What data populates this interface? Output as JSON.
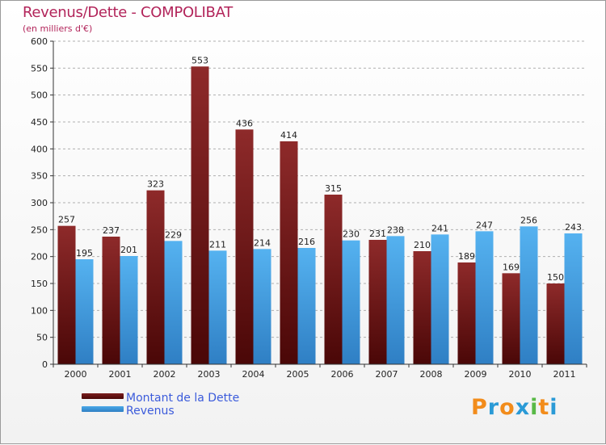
{
  "title": "Revenus/Dette - COMPOLIBAT",
  "subtitle": "(en milliers d'€)",
  "brand": {
    "text": "Proxiti",
    "letter_colors": [
      "#f28c1b",
      "#2a9ad6",
      "#f28c1b",
      "#2a9ad6",
      "#58b947",
      "#f28c1b",
      "#2a9ad6"
    ]
  },
  "colors": {
    "dette": "#7a1e1e",
    "dette_dark": "#4a0707",
    "revenus": "#4aa8e8",
    "revenus_dark": "#2f7fc4",
    "grid": "#b0b0b0",
    "axis": "#333333"
  },
  "chart_data": {
    "type": "bar",
    "title": "Revenus/Dette - COMPOLIBAT",
    "subtitle": "(en milliers d'€)",
    "categories": [
      "2000",
      "2001",
      "2002",
      "2003",
      "2004",
      "2005",
      "2006",
      "2007",
      "2008",
      "2009",
      "2010",
      "2011"
    ],
    "series": [
      {
        "name": "Montant de la Dette",
        "values": [
          257,
          237,
          323,
          553,
          436,
          414,
          315,
          231,
          210,
          189,
          169,
          150
        ]
      },
      {
        "name": "Revenus",
        "values": [
          195,
          201,
          229,
          211,
          214,
          216,
          230,
          238,
          241,
          247,
          256,
          243
        ]
      }
    ],
    "ylim": [
      0,
      600
    ],
    "yticks": [
      0,
      50,
      100,
      150,
      200,
      250,
      300,
      350,
      400,
      450,
      500,
      550,
      600
    ],
    "grid": "horizontal dashed",
    "legend_position": "bottom-left"
  }
}
